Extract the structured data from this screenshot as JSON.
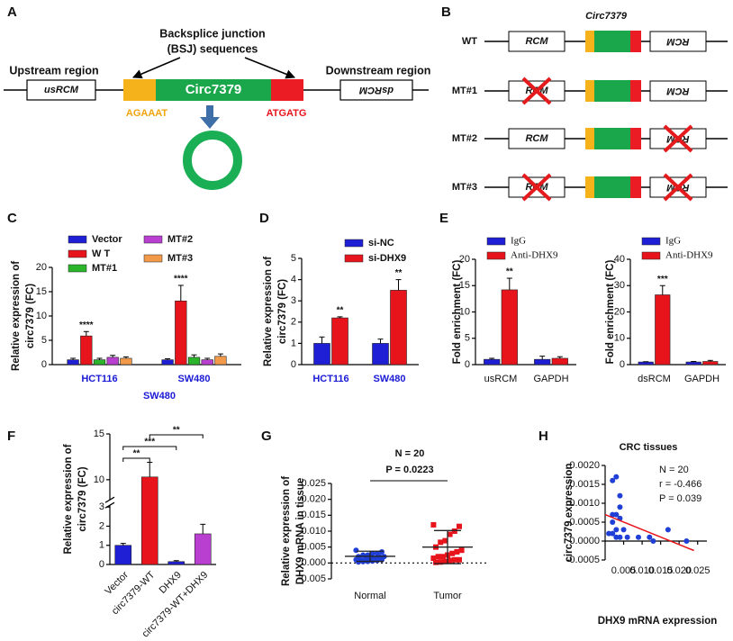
{
  "diagram_a": {
    "label": "A",
    "bsj": [
      "Backsplice junction",
      "(BSJ) sequences"
    ],
    "upstream": "Upstream region",
    "downstream": "Downstream region",
    "us_box": "usRCM",
    "circ": "Circ7379",
    "ds_box": "dsRCM",
    "left_seq": "AGAAAT",
    "right_seq": "ATGATG"
  },
  "diagram_b": {
    "label": "B",
    "circ": "Circ7379",
    "rows": [
      {
        "name": "WT",
        "left": "RCM",
        "right": "RCM",
        "left_deleted": false,
        "right_deleted": false
      },
      {
        "name": "MT#1",
        "left": "RCM",
        "right": "RCM",
        "left_deleted": true,
        "right_deleted": false
      },
      {
        "name": "MT#2",
        "left": "RCM",
        "right": "RCM",
        "left_deleted": false,
        "right_deleted": true
      },
      {
        "name": "MT#3",
        "left": "RCM",
        "right": "RCM",
        "left_deleted": true,
        "right_deleted": true
      }
    ]
  },
  "chart_data": [
    {
      "type": "bar",
      "label": "C",
      "ylabel": [
        "Relative expression of",
        "circ7379 (FC)"
      ],
      "categories": [
        "HCT116",
        "SW480"
      ],
      "category_color": "#1a1ad6",
      "series": [
        {
          "name": "Vector",
          "color": "#1f1fd6",
          "values": [
            1.0,
            1.0
          ],
          "errors": [
            0.3,
            0.2
          ]
        },
        {
          "name": "W T",
          "color": "#e8141c",
          "values": [
            5.9,
            13.1
          ],
          "errors": [
            0.9,
            3.2
          ]
        },
        {
          "name": "MT#1",
          "color": "#2bb52b",
          "values": [
            1.0,
            1.5
          ],
          "errors": [
            0.3,
            0.5
          ]
        },
        {
          "name": "MT#2",
          "color": "#b83fcf",
          "values": [
            1.5,
            1.0
          ],
          "errors": [
            0.4,
            0.3
          ]
        },
        {
          "name": "MT#3",
          "color": "#f29a4a",
          "values": [
            1.3,
            1.7
          ],
          "errors": [
            0.3,
            0.5
          ]
        }
      ],
      "ylim": [
        0,
        20
      ],
      "yticks": [
        0,
        5,
        10,
        15,
        20
      ],
      "significance": [
        "****",
        "****"
      ]
    },
    {
      "type": "bar",
      "label": "D",
      "ylabel": [
        "Relative expression of",
        "circ7379 (FC)"
      ],
      "categories": [
        "HCT116",
        "SW480"
      ],
      "category_color": "#1a1ad6",
      "series": [
        {
          "name": "si-NC",
          "color": "#1f1fd6",
          "values": [
            1.0,
            1.0
          ],
          "errors": [
            0.3,
            0.2
          ]
        },
        {
          "name": "si-DHX9",
          "color": "#e8141c",
          "values": [
            2.2,
            3.5
          ],
          "errors": [
            0.05,
            0.5
          ]
        }
      ],
      "ylim": [
        0,
        5
      ],
      "yticks": [
        0,
        1,
        2,
        3,
        4,
        5
      ],
      "significance": [
        "**",
        "**"
      ]
    },
    {
      "type": "bar",
      "label": "E",
      "ylabel": [
        "Fold enrichment (FC)"
      ],
      "categories": [
        "usRCM",
        "GAPDH"
      ],
      "series": [
        {
          "name": "IgG",
          "color": "#1f1fd6",
          "values": [
            1.0,
            1.0
          ],
          "errors": [
            0.2,
            0.6
          ]
        },
        {
          "name": "Anti-DHX9",
          "color": "#e8141c",
          "values": [
            14.2,
            1.2
          ],
          "errors": [
            2.2,
            0.3
          ]
        }
      ],
      "ylim": [
        0,
        20
      ],
      "yticks": [
        0,
        5,
        10,
        15,
        20
      ],
      "significance": [
        "**",
        null
      ]
    },
    {
      "type": "bar",
      "ylabel": [
        "Fold enrichment (FC)"
      ],
      "categories": [
        "dsRCM",
        "GAPDH"
      ],
      "series": [
        {
          "name": "IgG",
          "color": "#1f1fd6",
          "values": [
            1.0,
            1.0
          ],
          "errors": [
            0.1,
            0.2
          ]
        },
        {
          "name": "Anti-DHX9",
          "color": "#e8141c",
          "values": [
            26.5,
            1.2
          ],
          "errors": [
            3.5,
            0.4
          ]
        }
      ],
      "ylim": [
        0,
        40
      ],
      "yticks": [
        0,
        10,
        20,
        30,
        40
      ],
      "significance": [
        "***",
        null
      ]
    },
    {
      "type": "bar",
      "label": "F",
      "title": "SW480",
      "title_color": "#1a1ad6",
      "ylabel": [
        "Relative expression of",
        "circ7379 (FC)"
      ],
      "categories": [
        "Vector",
        "circ7379-WT",
        "DHX9",
        "circ7379-WT+DHX9"
      ],
      "values": [
        1.0,
        10.3,
        0.15,
        1.6
      ],
      "errors": [
        0.1,
        1.6,
        0.05,
        0.5
      ],
      "colors": [
        "#1f1fd6",
        "#e8141c",
        "#1f1fd6",
        "#b83fcf"
      ],
      "ylim": [
        0,
        15
      ],
      "ybreak": [
        3,
        8
      ],
      "yticks": [
        0,
        1,
        2,
        3,
        10,
        15
      ],
      "comparisons": [
        "**",
        "***",
        "**"
      ]
    },
    {
      "type": "strip",
      "label": "G",
      "title": "N = 20",
      "p_label": "P = 0.0223",
      "ylabel": [
        "Relative expression of",
        "DHX9 mRNA in tissue"
      ],
      "categories": [
        "Normal",
        "Tumor"
      ],
      "colors": [
        "#1f3fd6",
        "#e8141c"
      ],
      "points": [
        [
          0.004,
          0.0035,
          0.003,
          0.003,
          0.0025,
          0.0025,
          0.002,
          0.002,
          0.002,
          0.0015,
          0.0015,
          0.0012,
          0.001,
          0.001,
          0.001,
          0.0008,
          0.0006,
          0.0005,
          0.0004,
          0.0003
        ],
        [
          0.012,
          0.0115,
          0.01,
          0.009,
          0.007,
          0.0065,
          0.005,
          0.004,
          0.0035,
          0.003,
          0.0025,
          0.002,
          0.002,
          0.0015,
          0.001,
          0.001,
          0.0008,
          0.0005,
          0.0003,
          0.0002
        ]
      ],
      "mean": [
        0.0021,
        0.005
      ],
      "sd": [
        0.0016,
        0.0052
      ],
      "ylim": [
        -0.005,
        0.025
      ],
      "yticks": [
        -0.005,
        {
          "value": 0,
          "label": "0.000"
        },
        0.005,
        {
          "value": 0.01,
          "label": "0.010"
        },
        0.015,
        {
          "value": 0.02,
          "label": "0.020"
        },
        0.025
      ]
    },
    {
      "type": "scatter",
      "label": "H",
      "title": "CRC tissues",
      "annotations": [
        "N = 20",
        "r = -0.466",
        "P = 0.039"
      ],
      "ylabel": [
        "circ7379 expression"
      ],
      "xlabel": "DHX9 mRNA expression",
      "color": "#1f3fd6",
      "x": [
        0.002,
        0.003,
        0.004,
        0.004,
        0.003,
        0.002,
        0.004,
        0.002,
        0.003,
        0.005,
        0.001,
        0.002,
        0.003,
        0.004,
        0.006,
        0.009,
        0.012,
        0.017,
        0.013,
        0.022
      ],
      "y": [
        0.0016,
        0.0017,
        0.0012,
        0.0009,
        0.0007,
        0.0007,
        0.0006,
        0.0005,
        0.0003,
        0.0003,
        0.0002,
        0.0002,
        0.0001,
        0.0001,
        0.0001,
        0.0001,
        0.0001,
        0.0003,
        0.0,
        0.0
      ],
      "fit": {
        "color": "#e8141c",
        "x": [
          0.0,
          0.024
        ],
        "y": [
          0.0007,
          -0.00025
        ]
      },
      "xlim": [
        0,
        0.0275
      ],
      "ylim": [
        -0.0005,
        0.002
      ],
      "xticks": [
        0.005,
        {
          "value": 0.01,
          "label": "0.010"
        },
        0.015,
        {
          "value": 0.02,
          "label": "0.020"
        },
        0.025
      ],
      "yticks": [
        -0.0005,
        {
          "value": 0,
          "label": "0.0000"
        },
        0.0005,
        {
          "value": 0.001,
          "label": "0.0010"
        },
        0.0015,
        {
          "value": 0.002,
          "label": "0.0020"
        }
      ]
    }
  ]
}
